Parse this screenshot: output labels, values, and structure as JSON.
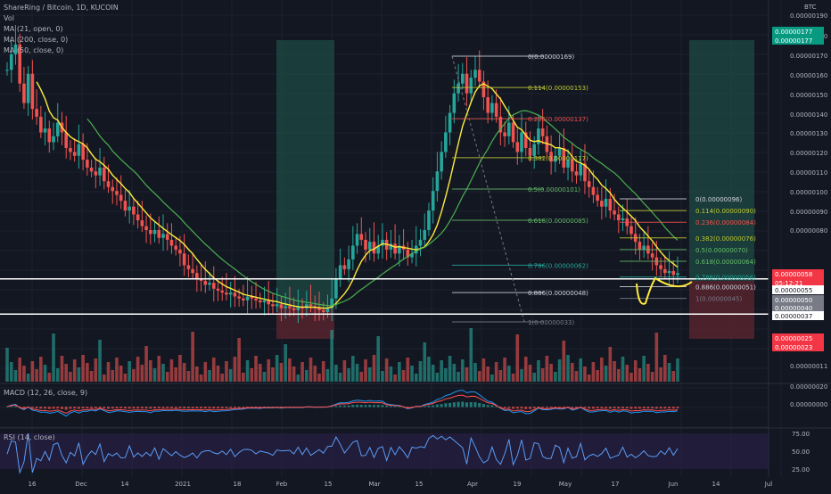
{
  "header": {
    "symbol_line": "ShareRing / Bitcoin, 1D, KUCOIN",
    "vol_label": "Vol",
    "ma_lines": [
      "MA (21, open, 0)",
      "MA (200, close, 0)",
      "MA (50, close, 0)"
    ],
    "price_axis_title": "BTC"
  },
  "panes": {
    "macd_label": "MACD (12, 26, close, 9)",
    "rsi_label": "RSI (14, close)"
  },
  "colors": {
    "background": "#131722",
    "up": "#26a69a",
    "down": "#ef5350",
    "ma21": "#ffeb3b",
    "ma50": "#4caf50",
    "macd": "#2196f3",
    "signal": "#ff5252",
    "rsi": "#5b9cf6",
    "rsi_band": "#2a1f4a",
    "highlight_green": "#1e4d45",
    "highlight_red": "#5a2430",
    "fib_white": "#d1d4dc",
    "fib_yellowgreen": "#c0ca33",
    "fib_green": "#66bb6a",
    "fib_teal": "#26a69a",
    "fib_red": "#ef5350",
    "fib_grey": "#787b86"
  },
  "chart_data": {
    "type": "candlestick",
    "price_axis_ticks": [
      "0.00000190",
      "0.00000180",
      "0.00000170",
      "0.00000160",
      "0.00000150",
      "0.00000140",
      "0.00000130",
      "0.00000120",
      "0.00000110",
      "0.00000100",
      "0.00000090",
      "0.00000080",
      "0.00000011"
    ],
    "price_scale": [
      {
        "value": 1.9,
        "y": 17
      },
      {
        "value": 1.8,
        "y": 40
      },
      {
        "value": 1.7,
        "y": 62
      },
      {
        "value": 1.6,
        "y": 84
      },
      {
        "value": 1.5,
        "y": 106
      },
      {
        "value": 1.4,
        "y": 128
      },
      {
        "value": 1.3,
        "y": 149
      },
      {
        "value": 1.2,
        "y": 171
      },
      {
        "value": 1.1,
        "y": 193
      },
      {
        "value": 1.0,
        "y": 215
      },
      {
        "value": 0.9,
        "y": 237
      },
      {
        "value": 0.8,
        "y": 258
      }
    ],
    "price_badges": [
      {
        "label": "0.00000177",
        "color": "#089981",
        "row": 0
      },
      {
        "label": "0.00000177",
        "color": "#089981",
        "row": 1
      },
      {
        "label": "0.00000058",
        "color": "#f23645",
        "row": 2
      },
      {
        "label": "05:12:21",
        "color": "#f23645",
        "row": 3
      },
      {
        "label": "0.00000055",
        "color": "#ffffff",
        "row": 4
      },
      {
        "label": "0.00000050",
        "color": "#787b86",
        "row": 5
      },
      {
        "label": "0.00000040",
        "color": "#787b86",
        "row": 6
      },
      {
        "label": "0.00000037",
        "color": "#ffffff",
        "row": 7
      },
      {
        "label": "0.00000025",
        "color": "#f23645",
        "row": 8
      },
      {
        "label": "0.00000023",
        "color": "#f23645",
        "row": 9
      }
    ],
    "x_axis_labels": [
      "16",
      "Dec",
      "14",
      "2021",
      "18",
      "Feb",
      "15",
      "Mar",
      "15",
      "Apr",
      "19",
      "May",
      "17",
      "Jun",
      "14",
      "Jul"
    ],
    "fib_left": {
      "levels": [
        {
          "label": "0(0.00000169)",
          "price": 1.69,
          "color": "#d1d4dc"
        },
        {
          "label": "0.114(0.00000153)",
          "price": 1.53,
          "color": "#c0ca33"
        },
        {
          "label": "0.236(0.00000137)",
          "price": 1.37,
          "color": "#ef5350"
        },
        {
          "label": "0.382(0.00000117)",
          "price": 1.17,
          "color": "#c0ca33"
        },
        {
          "label": "0.5(0.00000101)",
          "price": 1.01,
          "color": "#66bb6a"
        },
        {
          "label": "0.618(0.00000085)",
          "price": 0.85,
          "color": "#66bb6a"
        },
        {
          "label": "0.786(0.00000062)",
          "price": 0.62,
          "color": "#26a69a"
        },
        {
          "label": "0.886(0.00000048)",
          "price": 0.48,
          "color": "#d1d4dc"
        },
        {
          "label": "1(0.00000033)",
          "price": 0.33,
          "color": "#787b86"
        }
      ]
    },
    "fib_right": {
      "levels": [
        {
          "label": "0(0.00000096)",
          "price": 0.96,
          "color": "#d1d4dc"
        },
        {
          "label": "0.114(0.00000090)",
          "price": 0.9,
          "color": "#c0ca33"
        },
        {
          "label": "0.236(0.00000084)",
          "price": 0.84,
          "color": "#ef5350"
        },
        {
          "label": "0.382(0.00000076)",
          "price": 0.76,
          "color": "#c0ca33"
        },
        {
          "label": "0.5(0.00000070)",
          "price": 0.7,
          "color": "#66bb6a"
        },
        {
          "label": "0.618(0.00000064)",
          "price": 0.64,
          "color": "#66bb6a"
        },
        {
          "label": "0.786(0.00000056)",
          "price": 0.56,
          "color": "#26a69a"
        },
        {
          "label": "0.886(0.00000051)",
          "price": 0.51,
          "color": "#d1d4dc"
        },
        {
          "label": "1(0.00000045)",
          "price": 0.45,
          "color": "#787b86"
        }
      ]
    },
    "horizontal_levels": [
      0.55,
      0.37
    ],
    "ohlc_approx": [
      1.62,
      1.7,
      1.75,
      1.55,
      1.45,
      1.6,
      1.42,
      1.38,
      1.3,
      1.32,
      1.25,
      1.28,
      1.35,
      1.3,
      1.22,
      1.2,
      1.18,
      1.24,
      1.16,
      1.12,
      1.1,
      1.08,
      1.12,
      1.05,
      1.02,
      1.0,
      0.98,
      0.95,
      0.9,
      0.92,
      0.88,
      0.85,
      0.82,
      0.8,
      0.78,
      0.8,
      0.76,
      0.78,
      0.75,
      0.72,
      0.7,
      0.68,
      0.62,
      0.6,
      0.58,
      0.55,
      0.54,
      0.52,
      0.53,
      0.5,
      0.49,
      0.48,
      0.47,
      0.48,
      0.46,
      0.45,
      0.44,
      0.46,
      0.45,
      0.44,
      0.43,
      0.44,
      0.42,
      0.41,
      0.42,
      0.4,
      0.41,
      0.4,
      0.39,
      0.41,
      0.4,
      0.42,
      0.41,
      0.4,
      0.39,
      0.38,
      0.4,
      0.45,
      0.55,
      0.62,
      0.6,
      0.65,
      0.72,
      0.78,
      0.75,
      0.7,
      0.74,
      0.68,
      0.72,
      0.75,
      0.7,
      0.73,
      0.68,
      0.72,
      0.7,
      0.66,
      0.68,
      0.72,
      0.75,
      0.8,
      0.9,
      1.0,
      1.1,
      1.2,
      1.3,
      1.4,
      1.5,
      1.55,
      1.6,
      1.5,
      1.58,
      1.62,
      1.56,
      1.48,
      1.4,
      1.45,
      1.38,
      1.3,
      1.28,
      1.35,
      1.25,
      1.2,
      1.3,
      1.22,
      1.18,
      1.24,
      1.32,
      1.28,
      1.2,
      1.15,
      1.18,
      1.22,
      1.12,
      1.16,
      1.1,
      1.08,
      1.14,
      1.05,
      1.02,
      0.98,
      0.95,
      0.92,
      0.96,
      0.9,
      0.88,
      0.85,
      0.86,
      0.82,
      0.78,
      0.74,
      0.7,
      0.72,
      0.68,
      0.66,
      0.62,
      0.6,
      0.58,
      0.59,
      0.57,
      0.58
    ]
  }
}
